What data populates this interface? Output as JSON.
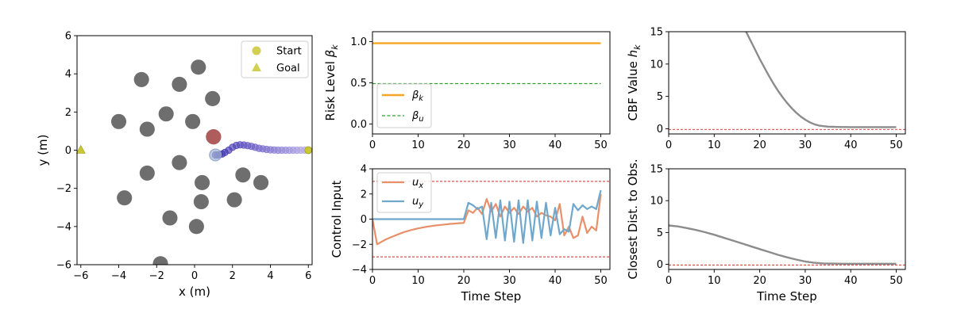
{
  "chart_data": [
    {
      "id": "trajectory",
      "type": "scatter",
      "xlabel": "x (m)",
      "ylabel": "y (m)",
      "xlim": [
        -6.2,
        6.2
      ],
      "ylim": [
        -6,
        6
      ],
      "xticks": [
        -6,
        -4,
        -2,
        0,
        2,
        4,
        6
      ],
      "yticks": [
        -6,
        -4,
        -2,
        0,
        2,
        4,
        6
      ],
      "xtick_labels": [
        "−6",
        "−4",
        "−2",
        "0",
        "2",
        "4",
        "6"
      ],
      "ytick_labels": [
        "−6",
        "−4",
        "−2",
        "0",
        "2",
        "4",
        "6"
      ],
      "legend": {
        "placement": "upper-right",
        "entries": [
          {
            "label": "Start",
            "marker": "circle",
            "color": "#c9c832"
          },
          {
            "label": "Goal",
            "marker": "triangle",
            "color": "#c9c832"
          }
        ]
      },
      "start": [
        6.0,
        0.0
      ],
      "goal": [
        -6.0,
        0.0
      ],
      "obstacle_color": "#555555",
      "obstacles": [
        [
          0.2,
          4.35
        ],
        [
          -2.8,
          3.7
        ],
        [
          -0.8,
          3.45
        ],
        [
          0.95,
          2.7
        ],
        [
          -1.5,
          1.9
        ],
        [
          -4.0,
          1.5
        ],
        [
          -0.1,
          1.5
        ],
        [
          -2.5,
          1.1
        ],
        [
          -0.8,
          -0.65
        ],
        [
          1.0,
          0.7
        ],
        [
          -2.5,
          -1.2
        ],
        [
          2.55,
          -1.3
        ],
        [
          0.4,
          -1.7
        ],
        [
          3.5,
          -1.7
        ],
        [
          -3.7,
          -2.5
        ],
        [
          0.35,
          -2.7
        ],
        [
          2.1,
          -2.6
        ],
        [
          -1.3,
          -3.55
        ],
        [
          0.1,
          -4.0
        ],
        [
          -1.8,
          -5.95
        ]
      ],
      "risk_obstacle": {
        "x": 1.0,
        "y": 0.7,
        "color": "#b55a5a"
      },
      "robot": {
        "x": 1.1,
        "y": -0.25,
        "color": "#a7b8d6"
      },
      "trajectory": [
        [
          1.1,
          -0.25
        ],
        [
          1.2,
          -0.25
        ],
        [
          1.3,
          -0.24
        ],
        [
          1.45,
          -0.2
        ],
        [
          1.6,
          -0.12
        ],
        [
          1.8,
          0.0
        ],
        [
          2.0,
          0.15
        ],
        [
          2.2,
          0.25
        ],
        [
          2.4,
          0.28
        ],
        [
          2.6,
          0.27
        ],
        [
          2.8,
          0.24
        ],
        [
          3.0,
          0.2
        ],
        [
          3.2,
          0.15
        ],
        [
          3.4,
          0.1
        ],
        [
          3.6,
          0.07
        ],
        [
          3.8,
          0.04
        ],
        [
          4.0,
          0.02
        ],
        [
          4.2,
          0.01
        ],
        [
          4.4,
          0.0
        ],
        [
          4.6,
          0.0
        ],
        [
          4.8,
          0.0
        ],
        [
          5.0,
          0.0
        ],
        [
          5.2,
          0.0
        ],
        [
          5.4,
          0.0
        ],
        [
          5.6,
          0.0
        ],
        [
          5.8,
          0.0
        ],
        [
          6.0,
          0.0
        ]
      ],
      "trajectory_colors": [
        "#2b1ea8",
        "#b8aee8"
      ]
    },
    {
      "id": "risk-level",
      "type": "line",
      "xlabel": "",
      "ylabel": "Risk Level βk",
      "xlim": [
        0,
        52
      ],
      "ylim": [
        -0.12,
        1.12
      ],
      "xticks": [
        0,
        10,
        20,
        30,
        40,
        50
      ],
      "yticks": [
        0.0,
        0.5,
        1.0
      ],
      "ytick_labels": [
        "0.0",
        "0.5",
        "1.0"
      ],
      "legend": {
        "placement": "lower-left"
      },
      "series": [
        {
          "name": "βk",
          "color": "#f5a623",
          "style": "solid",
          "x": [
            0,
            50
          ],
          "values": [
            0.98,
            0.98
          ]
        },
        {
          "name": "βu",
          "color": "#2ca02c",
          "style": "dashed",
          "x": [
            0,
            50
          ],
          "values": [
            0.49,
            0.49
          ]
        }
      ]
    },
    {
      "id": "control-input",
      "type": "line",
      "xlabel": "Time Step",
      "ylabel": "Control Input",
      "xlim": [
        0,
        52
      ],
      "ylim": [
        -4,
        4
      ],
      "xticks": [
        0,
        10,
        20,
        30,
        40,
        50
      ],
      "yticks": [
        -4,
        -2,
        0,
        2,
        4
      ],
      "ytick_labels": [
        "−4",
        "−2",
        "0",
        "2",
        "4"
      ],
      "reference_lines": [
        3,
        -3
      ],
      "reference_color": "#d62728",
      "legend": {
        "placement": "upper-left"
      },
      "series": [
        {
          "name": "ux",
          "color": "#e8906a",
          "x": [
            0,
            1,
            2,
            3,
            4,
            5,
            6,
            7,
            8,
            9,
            10,
            11,
            12,
            13,
            14,
            15,
            16,
            17,
            18,
            19,
            20,
            21,
            22,
            23,
            24,
            25,
            26,
            27,
            28,
            29,
            30,
            31,
            32,
            33,
            34,
            35,
            36,
            37,
            38,
            39,
            40,
            41,
            42,
            43,
            44,
            45,
            46,
            47,
            48,
            49,
            50
          ],
          "values": [
            0.0,
            -2.0,
            -1.8,
            -1.6,
            -1.45,
            -1.3,
            -1.15,
            -1.02,
            -0.92,
            -0.82,
            -0.74,
            -0.67,
            -0.6,
            -0.55,
            -0.5,
            -0.46,
            -0.42,
            -0.38,
            -0.35,
            -0.32,
            -0.3,
            0.7,
            0.5,
            0.9,
            0.4,
            1.6,
            0.6,
            1.2,
            0.2,
            1.0,
            0.5,
            0.9,
            0.4,
            1.0,
            0.6,
            0.9,
            0.2,
            0.5,
            0.3,
            0.2,
            -0.1,
            1.2,
            -1.3,
            -0.6,
            -1.5,
            -1.3,
            0.2,
            -1.1,
            -0.6,
            -0.9,
            2.0
          ]
        },
        {
          "name": "uy",
          "color": "#6fa8cc",
          "x": [
            0,
            1,
            2,
            3,
            4,
            5,
            6,
            7,
            8,
            9,
            10,
            11,
            12,
            13,
            14,
            15,
            16,
            17,
            18,
            19,
            20,
            21,
            22,
            23,
            24,
            25,
            26,
            27,
            28,
            29,
            30,
            31,
            32,
            33,
            34,
            35,
            36,
            37,
            38,
            39,
            40,
            41,
            42,
            43,
            44,
            45,
            46,
            47,
            48,
            49,
            50
          ],
          "values": [
            0,
            0,
            0,
            0,
            0,
            0,
            0,
            0,
            0,
            0,
            0,
            0,
            0,
            0,
            0,
            0,
            0,
            0,
            0,
            0,
            0,
            1.3,
            1.1,
            0.8,
            1.0,
            -1.6,
            1.3,
            -1.5,
            1.5,
            -1.7,
            1.4,
            -1.8,
            1.5,
            -1.9,
            1.5,
            -1.7,
            1.4,
            -1.5,
            1.3,
            -1.3,
            0.9,
            -1.2,
            -0.8,
            -1.0,
            1.2,
            0.7,
            1.1,
            0.8,
            1.0,
            0.8,
            2.3
          ]
        }
      ]
    },
    {
      "id": "cbf-value",
      "type": "line",
      "xlabel": "",
      "ylabel": "CBF Value hk",
      "xlim": [
        0,
        52
      ],
      "ylim": [
        -0.8,
        15
      ],
      "xticks": [
        0,
        10,
        20,
        30,
        40,
        50
      ],
      "yticks": [
        0,
        5,
        10,
        15
      ],
      "reference_lines": [
        -0.1
      ],
      "reference_color": "#d62728",
      "series": [
        {
          "name": "",
          "color": "#8c8c8c",
          "x": [
            17,
            18,
            19,
            20,
            21,
            22,
            23,
            24,
            25,
            26,
            27,
            28,
            29,
            30,
            31,
            32,
            33,
            34,
            35,
            36,
            37,
            38,
            39,
            40,
            45,
            50
          ],
          "values": [
            15.0,
            13.6,
            12.2,
            10.8,
            9.5,
            8.2,
            7.0,
            5.9,
            4.9,
            4.0,
            3.2,
            2.5,
            1.9,
            1.4,
            1.0,
            0.7,
            0.5,
            0.4,
            0.33,
            0.3,
            0.28,
            0.27,
            0.26,
            0.25,
            0.25,
            0.25
          ]
        }
      ]
    },
    {
      "id": "closest-distance",
      "type": "line",
      "xlabel": "Time Step",
      "ylabel": "Closest Dist. to Obs.",
      "xlim": [
        0,
        52
      ],
      "ylim": [
        -0.8,
        15
      ],
      "xticks": [
        0,
        10,
        20,
        30,
        40,
        50
      ],
      "yticks": [
        0,
        5,
        10,
        15
      ],
      "reference_lines": [
        -0.1
      ],
      "reference_color": "#d62728",
      "series": [
        {
          "name": "",
          "color": "#8c8c8c",
          "x": [
            0,
            2,
            4,
            6,
            8,
            10,
            12,
            14,
            16,
            18,
            20,
            22,
            24,
            26,
            28,
            30,
            32,
            34,
            36,
            38,
            40,
            45,
            50
          ],
          "values": [
            6.1,
            5.95,
            5.7,
            5.4,
            5.05,
            4.65,
            4.2,
            3.75,
            3.3,
            2.85,
            2.4,
            1.95,
            1.5,
            1.1,
            0.75,
            0.45,
            0.25,
            0.15,
            0.12,
            0.1,
            0.1,
            0.1,
            0.1
          ]
        }
      ]
    }
  ]
}
